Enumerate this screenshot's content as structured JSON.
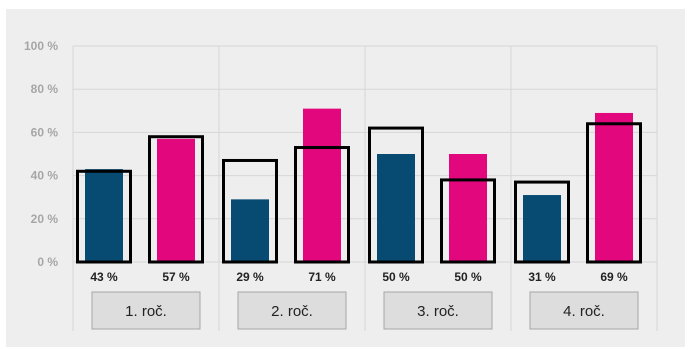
{
  "chart_data": {
    "type": "bar",
    "categories": [
      "1. roč.",
      "2. roč.",
      "3. roč.",
      "4. roč."
    ],
    "series": [
      {
        "values": [
          43,
          29,
          50,
          31
        ],
        "labels": [
          "43 %",
          "29 %",
          "50 %",
          "31 %"
        ],
        "color": "#074b73"
      },
      {
        "values": [
          57,
          71,
          50,
          69
        ],
        "labels": [
          "57 %",
          "71 %",
          "50 %",
          "69 %"
        ],
        "color": "#e2077c"
      }
    ],
    "outline_series": [
      {
        "values": [
          42,
          47,
          62,
          37
        ],
        "style": "black outline"
      },
      {
        "values": [
          58,
          53,
          38,
          64
        ],
        "style": "black outline"
      }
    ],
    "y_ticks": [
      "0 %",
      "20 %",
      "40 %",
      "60 %",
      "80 %",
      "100 %"
    ],
    "ylim": [
      0,
      100
    ],
    "grid": true,
    "legend": "none"
  }
}
